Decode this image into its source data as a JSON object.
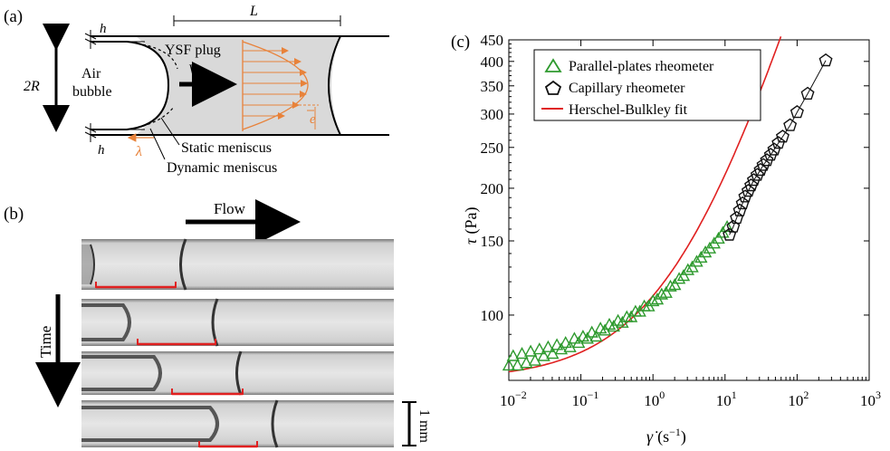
{
  "panel_a": {
    "label": "(a)",
    "h_top": "h",
    "h_bottom": "h",
    "L": "L",
    "two_R": "2R",
    "air_line1": "Air",
    "air_line2": "bubble",
    "plug": "YSF plug",
    "V": "V",
    "e": "e",
    "lambda": "λ",
    "static_meniscus": "Static meniscus",
    "dynamic_meniscus": "Dynamic meniscus"
  },
  "panel_b": {
    "label": "(b)",
    "flow": "Flow",
    "time": "Time",
    "scale": "1 mm"
  },
  "panel_c": {
    "label": "(c)",
    "legend": {
      "parallel": "Parallel-plates rheometer",
      "capillary": "Capillary rheometer",
      "fit": "Herschel-Bulkley fit"
    },
    "ylabel_sym": "τ",
    "ylabel_unit": "(Pa)",
    "xlabel_sym": "γ̇",
    "xlabel_unit": "(s",
    "xlabel_exp": "−1",
    "xlabel_close": ")"
  },
  "chart_data": {
    "type": "scatter",
    "xscale": "log",
    "yscale": "log",
    "xlim": [
      0.01,
      1000
    ],
    "ylim": [
      70,
      450
    ],
    "x_ticks": [
      {
        "value": 0.01,
        "base": "10",
        "exp": "−2"
      },
      {
        "value": 0.1,
        "base": "10",
        "exp": "−1"
      },
      {
        "value": 1,
        "base": "10",
        "exp": "0"
      },
      {
        "value": 10,
        "base": "10",
        "exp": "1"
      },
      {
        "value": 100,
        "base": "10",
        "exp": "2"
      },
      {
        "value": 1000,
        "base": "10",
        "exp": "3"
      }
    ],
    "y_ticks": [
      {
        "value": 100,
        "label": "100"
      },
      {
        "value": 150,
        "label": "150"
      },
      {
        "value": 200,
        "label": "200"
      },
      {
        "value": 250,
        "label": "250"
      },
      {
        "value": 300,
        "label": "300"
      },
      {
        "value": 350,
        "label": "350"
      },
      {
        "value": 400,
        "label": "400"
      },
      {
        "value": 450,
        "label": "450"
      }
    ],
    "series": [
      {
        "name": "Parallel-plates rheometer",
        "marker": "triangle",
        "color": "#2e9a2e",
        "x": [
          0.01,
          0.0115,
          0.0132,
          0.0152,
          0.0175,
          0.0201,
          0.0231,
          0.0266,
          0.0305,
          0.0351,
          0.0404,
          0.0464,
          0.0534,
          0.0614,
          0.0706,
          0.0812,
          0.0934,
          0.107,
          0.123,
          0.142,
          0.163,
          0.187,
          0.215,
          0.248,
          0.285,
          0.327,
          0.376,
          0.433,
          0.498,
          0.572,
          0.658,
          0.757,
          0.87,
          1.0,
          1.15,
          1.32,
          1.52,
          1.75,
          2.01,
          2.31,
          2.66,
          3.05,
          3.51,
          4.04,
          4.64,
          5.34,
          6.14,
          7.06,
          8.12,
          9.34,
          10.7
        ],
        "y": [
          76,
          80,
          76,
          81,
          77,
          82,
          78,
          83,
          80,
          84,
          81,
          85,
          83,
          86,
          84,
          88,
          86,
          89,
          88,
          91,
          89,
          93,
          92,
          95,
          94,
          97,
          96,
          99,
          99,
          102,
          102,
          105,
          105,
          108,
          109,
          112,
          113,
          117,
          118,
          122,
          124,
          128,
          130,
          134,
          137,
          141,
          144,
          148,
          152,
          157,
          162
        ]
      },
      {
        "name": "Capillary rheometer",
        "marker": "pentagon",
        "color": "#111111",
        "x": [
          11.5,
          13,
          14.5,
          16,
          17.5,
          19,
          21,
          23,
          25,
          28,
          31,
          34,
          38,
          43,
          48,
          55,
          63,
          80,
          100,
          140,
          250
        ],
        "y": [
          155,
          162,
          170,
          177,
          184,
          191,
          197,
          203,
          209,
          215,
          221,
          227,
          233,
          240,
          247,
          256,
          265,
          282,
          303,
          335,
          402
        ]
      }
    ],
    "fit": {
      "name": "Herschel-Bulkley fit",
      "color": "#e02020",
      "tau_y": 70.1,
      "K": 41,
      "n": 0.55
    }
  }
}
